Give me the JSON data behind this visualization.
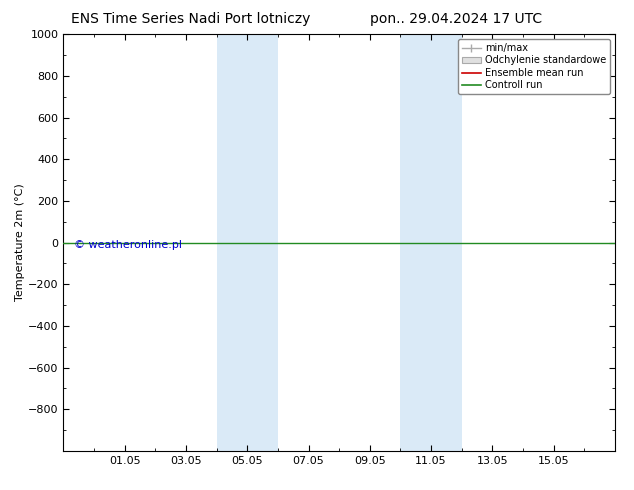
{
  "title_left": "ENS Time Series Nadi Port lotniczy",
  "title_right": "pon.. 29.04.2024 17 UTC",
  "ylabel": "Temperature 2m (°C)",
  "watermark": "© weatheronline.pl",
  "ylim_top": -1000,
  "ylim_bottom": 1000,
  "yticks": [
    -800,
    -600,
    -400,
    -200,
    0,
    200,
    400,
    600,
    800,
    1000
  ],
  "xtick_labels": [
    "01.05",
    "03.05",
    "05.05",
    "07.05",
    "09.05",
    "11.05",
    "13.05",
    "15.05"
  ],
  "xtick_positions": [
    2,
    4,
    6,
    8,
    10,
    12,
    14,
    16
  ],
  "xlim": [
    0,
    18
  ],
  "shaded_bands": [
    {
      "x_start": 5.0,
      "x_end": 7.0,
      "color": "#daeaf7"
    },
    {
      "x_start": 11.0,
      "x_end": 13.0,
      "color": "#daeaf7"
    }
  ],
  "horizontal_line_y": 0,
  "horizontal_line_color": "#228B22",
  "legend_entries": [
    "min/max",
    "Odchylenie standardowe",
    "Ensemble mean run",
    "Controll run"
  ],
  "legend_colors_line": [
    "#aaaaaa",
    "#cccccc",
    "#cc0000",
    "#228B22"
  ],
  "background_color": "#ffffff",
  "plot_bg_color": "#ffffff",
  "title_fontsize": 10,
  "tick_fontsize": 8,
  "ylabel_fontsize": 8,
  "watermark_color": "#0000cc",
  "watermark_fontsize": 8
}
